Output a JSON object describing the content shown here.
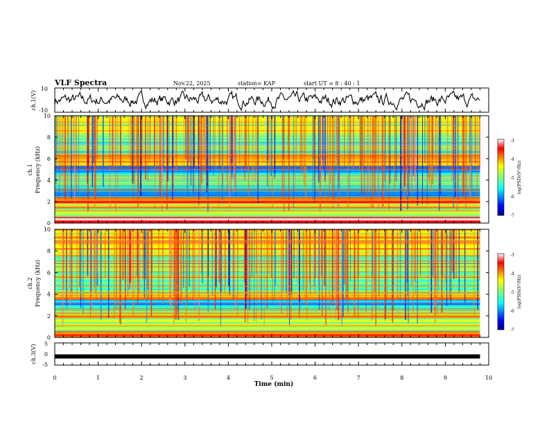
{
  "header": {
    "title": "VLF Spectra",
    "date": "Nov.22, 2025",
    "station": "station= KAP",
    "start": "start  UT =   8 : 40 : 1"
  },
  "chart_data": [
    {
      "type": "line",
      "id": "ch1-waveform",
      "ylabel": "ch.1(V)",
      "ylim": [
        -10,
        10
      ],
      "yticks": [
        "10",
        "-10"
      ],
      "xlim": [
        0,
        10
      ],
      "xlabel": ""
    },
    {
      "type": "heatmap",
      "id": "ch1-spectrogram",
      "ylabel": "ch.1\nFrequency (kHz)",
      "ylabel_lines": [
        "ch.1",
        "Frequency (kHz)"
      ],
      "ylim": [
        0,
        10
      ],
      "yticks": [
        "0",
        "2",
        "4",
        "6",
        "8",
        "10"
      ],
      "xlim": [
        0,
        9.8
      ],
      "colorbar": {
        "label": "log(PSD)(V²/Hz)",
        "range": [
          -7,
          -3
        ],
        "ticks": [
          "-3",
          "-4",
          "-5",
          "-6",
          "-7"
        ]
      },
      "bands_khz": [
        {
          "from": 0,
          "to": 0.6,
          "level": -3.3
        },
        {
          "from": 0.6,
          "to": 1.9,
          "level": -4.8
        },
        {
          "from": 1.9,
          "to": 2.4,
          "level": -3.6
        },
        {
          "from": 2.4,
          "to": 3.5,
          "level": -5.7
        },
        {
          "from": 3.5,
          "to": 4.6,
          "level": -5.0
        },
        {
          "from": 4.6,
          "to": 5.3,
          "level": -5.8
        },
        {
          "from": 5.3,
          "to": 6.3,
          "level": -4.3
        },
        {
          "from": 6.3,
          "to": 8.4,
          "level": -5.2
        },
        {
          "from": 8.4,
          "to": 10,
          "level": -4.6
        }
      ]
    },
    {
      "type": "heatmap",
      "id": "ch2-spectrogram",
      "ylabel": "ch.2\nFrequency (kHz)",
      "ylabel_lines": [
        "ch.2",
        "Frequency (kHz)"
      ],
      "ylim": [
        0,
        10
      ],
      "yticks": [
        "0",
        "2",
        "4",
        "6",
        "8",
        "10"
      ],
      "xlim": [
        0,
        9.8
      ],
      "colorbar": {
        "label": "log(PSD)(V²/Hz)",
        "range": [
          -7,
          -3
        ],
        "ticks": [
          "-3",
          "-4",
          "-5",
          "-6",
          "-7"
        ]
      },
      "bands_khz": [
        {
          "from": 0,
          "to": 0.6,
          "level": -3.8
        },
        {
          "from": 0.6,
          "to": 1.8,
          "level": -4.8
        },
        {
          "from": 1.8,
          "to": 2.1,
          "level": -3.9
        },
        {
          "from": 2.1,
          "to": 3.0,
          "level": -5.0
        },
        {
          "from": 3.0,
          "to": 3.5,
          "level": -5.9
        },
        {
          "from": 3.5,
          "to": 4.0,
          "level": -4.2
        },
        {
          "from": 4.0,
          "to": 5.5,
          "level": -5.2
        },
        {
          "from": 5.5,
          "to": 7.5,
          "level": -4.9
        },
        {
          "from": 7.5,
          "to": 10,
          "level": -4.3
        }
      ]
    },
    {
      "type": "line",
      "id": "ch3-waveform",
      "ylabel": "ch.3(V)",
      "ylim": [
        -5,
        5
      ],
      "yticks": [
        "5",
        "0",
        "-5"
      ],
      "xlim": [
        0,
        10
      ],
      "xlabel": "Time  (min)",
      "xticks": [
        "0",
        "1",
        "2",
        "3",
        "4",
        "5",
        "6",
        "7",
        "8",
        "9",
        "10"
      ],
      "constant_value": -1.1
    }
  ]
}
